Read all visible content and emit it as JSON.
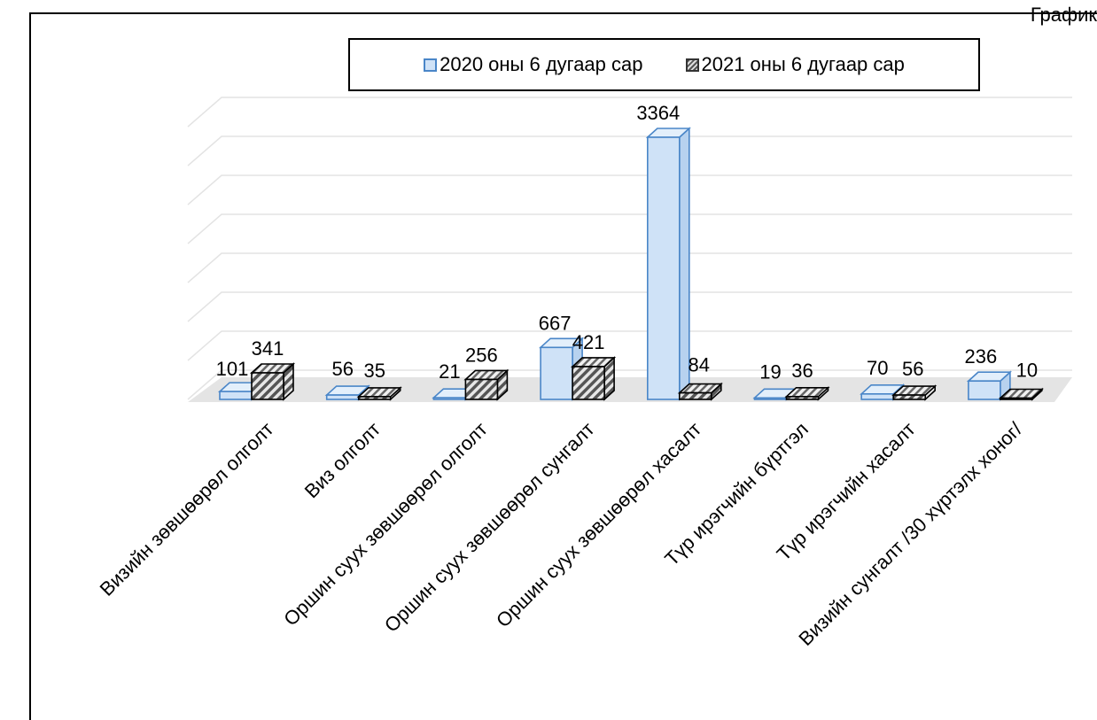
{
  "corner_label": "График",
  "chart_data": {
    "type": "bar",
    "title": "",
    "xlabel": "",
    "ylabel": "",
    "ylim": [
      0,
      3500
    ],
    "grid": true,
    "legend_position": "top",
    "categories": [
      "Визийн зөвшөөрөл олголт",
      "Виз олголт",
      "Оршин суух зөвшөөрөл олголт",
      "Оршин суух зөвшөөрөл сунгалт",
      "Оршин суух зөвшөөрөл хасалт",
      "Түр ирэгчийн бүртгэл",
      "Түр ирэгчийн хасалт",
      "Визийн сунгалт /30 хүртэлх хоног/"
    ],
    "series": [
      {
        "name": "2020 оны 6 дугаар сар",
        "values": [
          101,
          56,
          21,
          667,
          3364,
          19,
          70,
          236
        ],
        "color": "#4a86c8"
      },
      {
        "name": "2021 оны 6 дугаар сар",
        "values": [
          341,
          35,
          256,
          421,
          84,
          36,
          56,
          10
        ],
        "color": "#000000"
      }
    ]
  }
}
